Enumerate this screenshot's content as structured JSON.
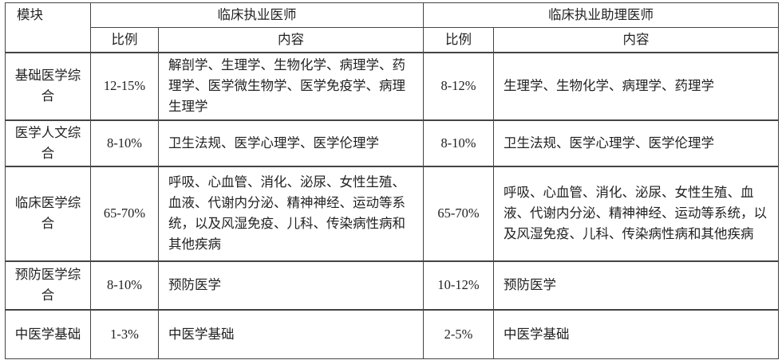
{
  "header": {
    "module": "模块",
    "group1": "临床执业医师",
    "group2": "临床执业助理医师",
    "ratio": "比例",
    "content": "内容"
  },
  "rows": [
    {
      "module": "基础医学综合",
      "ratio1": "12-15%",
      "content1": "解剖学、生理学、生物化学、病理学、药理学、医学微生物学、医学免疫学、病理生理学",
      "ratio2": "8-12%",
      "content2": "生理学、生物化学、病理学、药理学"
    },
    {
      "module": "医学人文综合",
      "ratio1": "8-10%",
      "content1": "卫生法规、医学心理学、医学伦理学",
      "ratio2": "8-10%",
      "content2": "卫生法规、医学心理学、医学伦理学"
    },
    {
      "module": "临床医学综合",
      "ratio1": "65-70%",
      "content1": "呼吸、心血管、消化、泌尿、女性生殖、血液、代谢内分泌、精神神经、运动等系统，以及风湿免疫、儿科、传染病性病和其他疾病",
      "ratio2": "65-70%",
      "content2": "呼吸、心血管、消化、泌尿、女性生殖、血液、代谢内分泌、精神神经、运动等系统，以及风湿免疫、儿科、传染病性病和其他疾病"
    },
    {
      "module": "预防医学综合",
      "ratio1": "8-10%",
      "content1": "预防医学",
      "ratio2": "10-12%",
      "content2": "预防医学"
    },
    {
      "module": "中医学基础",
      "ratio1": "1-3%",
      "content1": "中医学基础",
      "ratio2": "2-5%",
      "content2": "中医学基础"
    }
  ]
}
